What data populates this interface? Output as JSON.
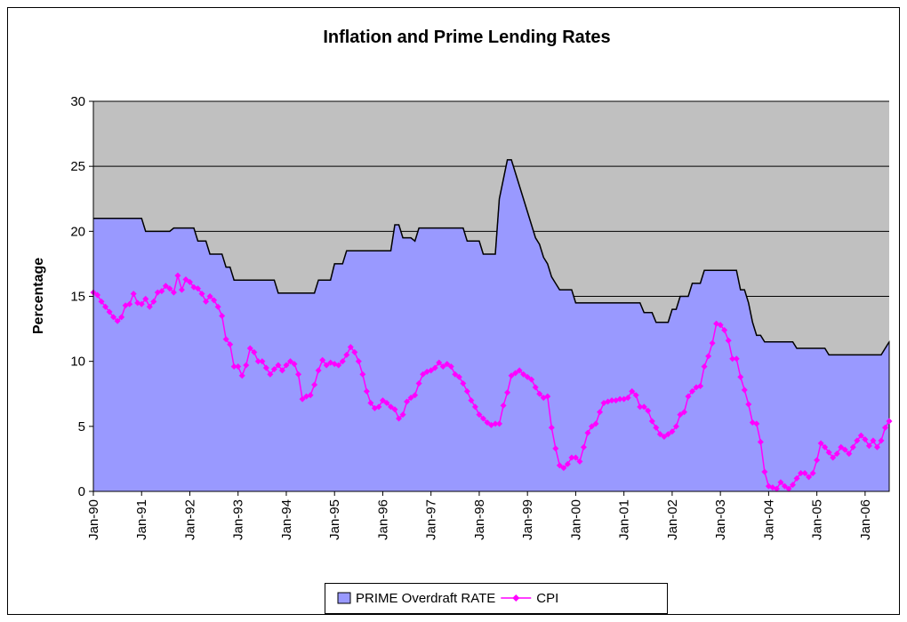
{
  "chart_data": {
    "type": "combo",
    "title": "Inflation and Prime Lending Rates",
    "y_label": "Percentage",
    "ylim": [
      0,
      30
    ],
    "yticks": [
      0,
      5,
      10,
      15,
      20,
      25,
      30
    ],
    "grid": true,
    "legend": "bottom",
    "categories": [
      "Jan-90",
      null,
      null,
      null,
      null,
      null,
      null,
      null,
      null,
      null,
      null,
      null,
      "Jan-91",
      null,
      null,
      null,
      null,
      null,
      null,
      null,
      null,
      null,
      null,
      null,
      "Jan-92",
      null,
      null,
      null,
      null,
      null,
      null,
      null,
      null,
      null,
      null,
      null,
      "Jan-93",
      null,
      null,
      null,
      null,
      null,
      null,
      null,
      null,
      null,
      null,
      null,
      "Jan-94",
      null,
      null,
      null,
      null,
      null,
      null,
      null,
      null,
      null,
      null,
      null,
      "Jan-95",
      null,
      null,
      null,
      null,
      null,
      null,
      null,
      null,
      null,
      null,
      null,
      "Jan-96",
      null,
      null,
      null,
      null,
      null,
      null,
      null,
      null,
      null,
      null,
      null,
      "Jan-97",
      null,
      null,
      null,
      null,
      null,
      null,
      null,
      null,
      null,
      null,
      null,
      "Jan-98",
      null,
      null,
      null,
      null,
      null,
      null,
      null,
      null,
      null,
      null,
      null,
      "Jan-99",
      null,
      null,
      null,
      null,
      null,
      null,
      null,
      null,
      null,
      null,
      null,
      "Jan-00",
      null,
      null,
      null,
      null,
      null,
      null,
      null,
      null,
      null,
      null,
      null,
      "Jan-01",
      null,
      null,
      null,
      null,
      null,
      null,
      null,
      null,
      null,
      null,
      null,
      "Jan-02",
      null,
      null,
      null,
      null,
      null,
      null,
      null,
      null,
      null,
      null,
      null,
      "Jan-03",
      null,
      null,
      null,
      null,
      null,
      null,
      null,
      null,
      null,
      null,
      null,
      "Jan-04",
      null,
      null,
      null,
      null,
      null,
      null,
      null,
      null,
      null,
      null,
      null,
      "Jan-05",
      null,
      null,
      null,
      null,
      null,
      null,
      null,
      null,
      null,
      null,
      null,
      "Jan-06",
      null,
      null,
      null,
      null,
      null,
      null
    ],
    "series": [
      {
        "name": "PRIME Overdraft RATE",
        "type": "area",
        "color": "#9999ff",
        "values": [
          21,
          21,
          21,
          21,
          21,
          21,
          21,
          21,
          21,
          21,
          21,
          21,
          21,
          20,
          20,
          20,
          20,
          20,
          20,
          20,
          20.25,
          20.25,
          20.25,
          20.25,
          20.25,
          20.25,
          19.25,
          19.25,
          19.25,
          18.25,
          18.25,
          18.25,
          18.25,
          17.25,
          17.25,
          16.25,
          16.25,
          16.25,
          16.25,
          16.25,
          16.25,
          16.25,
          16.25,
          16.25,
          16.25,
          16.25,
          15.25,
          15.25,
          15.25,
          15.25,
          15.25,
          15.25,
          15.25,
          15.25,
          15.25,
          15.25,
          16.25,
          16.25,
          16.25,
          16.25,
          17.5,
          17.5,
          17.5,
          18.5,
          18.5,
          18.5,
          18.5,
          18.5,
          18.5,
          18.5,
          18.5,
          18.5,
          18.5,
          18.5,
          18.5,
          20.5,
          20.5,
          19.5,
          19.5,
          19.5,
          19.25,
          20.25,
          20.25,
          20.25,
          20.25,
          20.25,
          20.25,
          20.25,
          20.25,
          20.25,
          20.25,
          20.25,
          20.25,
          19.25,
          19.25,
          19.25,
          19.25,
          18.25,
          18.25,
          18.25,
          18.25,
          22.5,
          24,
          25.5,
          25.5,
          24.5,
          23.5,
          22.5,
          21.5,
          20.5,
          19.5,
          19,
          18,
          17.5,
          16.5,
          16,
          15.5,
          15.5,
          15.5,
          15.5,
          14.5,
          14.5,
          14.5,
          14.5,
          14.5,
          14.5,
          14.5,
          14.5,
          14.5,
          14.5,
          14.5,
          14.5,
          14.5,
          14.5,
          14.5,
          14.5,
          14.5,
          13.75,
          13.75,
          13.75,
          13,
          13,
          13,
          13,
          14,
          14,
          15,
          15,
          15,
          16,
          16,
          16,
          17,
          17,
          17,
          17,
          17,
          17,
          17,
          17,
          17,
          15.5,
          15.5,
          14.5,
          13,
          12,
          12,
          11.5,
          11.5,
          11.5,
          11.5,
          11.5,
          11.5,
          11.5,
          11.5,
          11,
          11,
          11,
          11,
          11,
          11,
          11,
          11,
          10.5,
          10.5,
          10.5,
          10.5,
          10.5,
          10.5,
          10.5,
          10.5,
          10.5,
          10.5,
          10.5,
          10.5,
          10.5,
          10.5,
          11,
          11.5
        ]
      },
      {
        "name": "CPI",
        "type": "line",
        "color": "#ff00ff",
        "values": [
          15.3,
          15.1,
          14.6,
          14.2,
          13.8,
          13.4,
          13.1,
          13.4,
          14.3,
          14.4,
          15.2,
          14.5,
          14.4,
          14.8,
          14.2,
          14.6,
          15.3,
          15.4,
          15.8,
          15.6,
          15.3,
          16.6,
          15.5,
          16.3,
          16.1,
          15.7,
          15.6,
          15.2,
          14.6,
          15.0,
          14.7,
          14.2,
          13.5,
          11.7,
          11.3,
          9.6,
          9.6,
          8.9,
          9.7,
          11.0,
          10.7,
          10.0,
          10.0,
          9.5,
          9.0,
          9.4,
          9.7,
          9.3,
          9.7,
          10.0,
          9.8,
          9.0,
          7.1,
          7.3,
          7.4,
          8.2,
          9.3,
          10.1,
          9.7,
          9.9,
          9.8,
          9.7,
          10.0,
          10.5,
          11.1,
          10.7,
          10.0,
          9.0,
          7.7,
          6.8,
          6.4,
          6.5,
          7.0,
          6.8,
          6.5,
          6.3,
          5.6,
          5.9,
          6.9,
          7.2,
          7.4,
          8.3,
          9.0,
          9.2,
          9.3,
          9.5,
          9.9,
          9.6,
          9.8,
          9.6,
          9.0,
          8.8,
          8.3,
          7.7,
          7.0,
          6.5,
          5.9,
          5.6,
          5.3,
          5.1,
          5.2,
          5.2,
          6.6,
          7.6,
          8.9,
          9.1,
          9.3,
          9.0,
          8.8,
          8.6,
          8.0,
          7.5,
          7.2,
          7.3,
          4.9,
          3.3,
          2.0,
          1.8,
          2.1,
          2.6,
          2.6,
          2.3,
          3.4,
          4.5,
          5.0,
          5.2,
          6.1,
          6.8,
          6.9,
          7.0,
          7.0,
          7.1,
          7.1,
          7.2,
          7.7,
          7.4,
          6.5,
          6.5,
          6.2,
          5.4,
          4.9,
          4.4,
          4.2,
          4.4,
          4.6,
          5.0,
          5.9,
          6.1,
          7.3,
          7.7,
          8.0,
          8.1,
          9.6,
          10.4,
          11.4,
          12.9,
          12.8,
          12.4,
          11.6,
          10.2,
          10.2,
          8.8,
          7.8,
          6.7,
          5.3,
          5.2,
          3.8,
          1.5,
          0.4,
          0.3,
          0.2,
          0.7,
          0.4,
          0.2,
          0.5,
          1.0,
          1.4,
          1.4,
          1.1,
          1.4,
          2.4,
          3.7,
          3.4,
          3.0,
          2.6,
          2.9,
          3.4,
          3.2,
          2.9,
          3.4,
          3.9,
          4.3,
          4.0,
          3.5,
          3.9,
          3.4,
          3.9,
          4.9,
          5.4
        ]
      }
    ]
  }
}
